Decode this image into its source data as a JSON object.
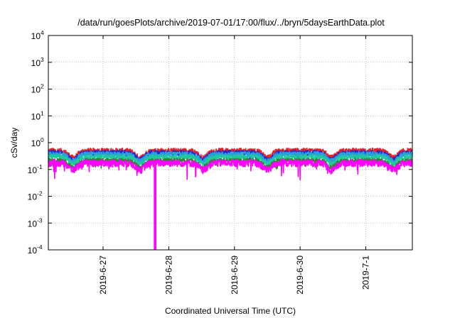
{
  "chart_data": {
    "type": "line",
    "title": "/data/run/goesPlots/archive/2019-07-01/17:00/flux/../bryn/5daysEarthData.plot",
    "xlabel": "Coordinated Universal Time (UTC)",
    "ylabel": "cSv/day",
    "y_scale": "log",
    "ylim": [
      0.0001,
      10000
    ],
    "y_ticks": [
      {
        "mantissa": "10",
        "exponent": "-4",
        "value": 0.0001
      },
      {
        "mantissa": "10",
        "exponent": "-3",
        "value": 0.001
      },
      {
        "mantissa": "10",
        "exponent": "-2",
        "value": 0.01
      },
      {
        "mantissa": "10",
        "exponent": "-1",
        "value": 0.1
      },
      {
        "mantissa": "10",
        "exponent": "0",
        "value": 1
      },
      {
        "mantissa": "10",
        "exponent": "1",
        "value": 10
      },
      {
        "mantissa": "10",
        "exponent": "2",
        "value": 100
      },
      {
        "mantissa": "10",
        "exponent": "3",
        "value": 1000
      },
      {
        "mantissa": "10",
        "exponent": "4",
        "value": 10000
      }
    ],
    "xlim": [
      "2019-06-26 04:00",
      "2019-07-01 17:00"
    ],
    "x_ticks": [
      {
        "label": "2019-6-27",
        "value": "2019-06-27 00:00"
      },
      {
        "label": "2019-6-28",
        "value": "2019-06-28 00:00"
      },
      {
        "label": "2019-6-29",
        "value": "2019-06-29 00:00"
      },
      {
        "label": "2019-6-30",
        "value": "2019-06-30 00:00"
      },
      {
        "label": "2019-7-1",
        "value": "2019-07-01 00:00"
      }
    ],
    "grid": true,
    "series": [
      {
        "color": "#e8202a",
        "baseline": 0.5,
        "amplitude": 0.5
      },
      {
        "color": "#1a2bd6",
        "baseline": 0.42,
        "amplitude": 0.45
      },
      {
        "color": "#2aa0d8",
        "baseline": 0.38,
        "amplitude": 0.42
      },
      {
        "color": "#20c8a0",
        "baseline": 0.3,
        "amplitude": 0.38
      },
      {
        "color": "#2a8a2a",
        "baseline": 0.22,
        "amplitude": 0.35
      },
      {
        "color": "#ff00ff",
        "baseline": 0.18,
        "amplitude": 0.6
      }
    ],
    "spike": {
      "color": "#ff00ff",
      "time": "2019-06-27 19:00",
      "min_value": 0.0001
    }
  }
}
